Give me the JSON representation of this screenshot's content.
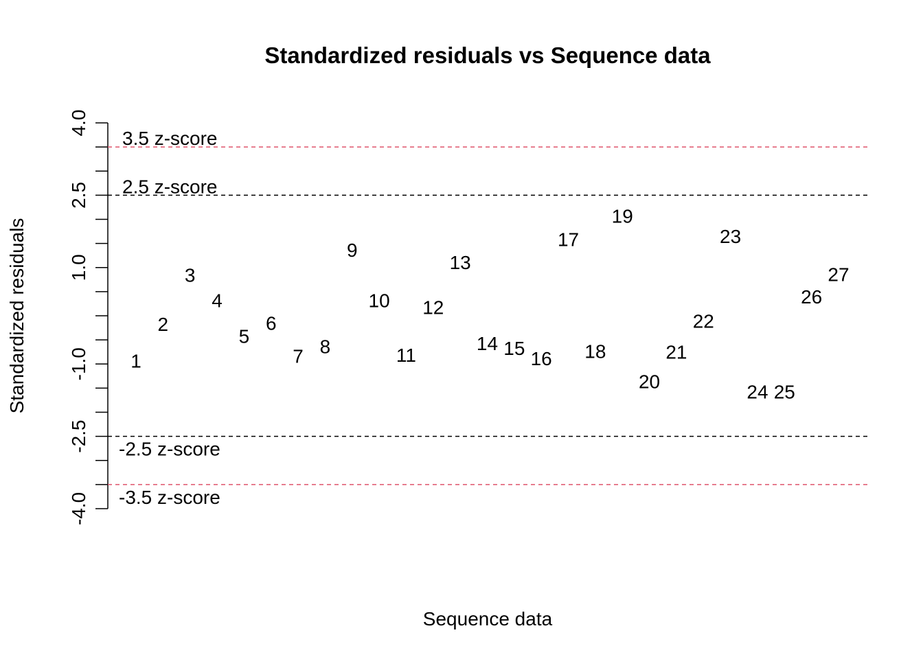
{
  "chart_data": {
    "type": "scatter",
    "title": "Standardized residuals vs Sequence data",
    "xlabel": "Sequence data",
    "ylabel": "Standardized residuals",
    "ylim": [
      -4.0,
      4.0
    ],
    "xlim": [
      1,
      27
    ],
    "y_tick_labels": [
      "-4.0",
      "-2.5",
      "-1.0",
      "1.0",
      "2.5",
      "4.0"
    ],
    "y_tick_values": [
      -4,
      -3.5,
      -3,
      -2.5,
      -2,
      -1.5,
      -1,
      -0.5,
      0,
      0.5,
      1,
      1.5,
      2,
      2.5,
      3,
      3.5,
      4
    ],
    "y_tick_label_values": [
      -4.0,
      -2.5,
      -1.0,
      1.0,
      2.5,
      4.0
    ],
    "grid": false,
    "points": {
      "x": [
        1,
        2,
        3,
        4,
        5,
        6,
        7,
        8,
        9,
        10,
        11,
        12,
        13,
        14,
        15,
        16,
        17,
        18,
        19,
        20,
        21,
        22,
        23,
        24,
        25,
        26,
        27
      ],
      "labels": [
        "1",
        "2",
        "3",
        "4",
        "5",
        "6",
        "7",
        "8",
        "9",
        "10",
        "11",
        "12",
        "13",
        "14",
        "15",
        "16",
        "17",
        "18",
        "19",
        "20",
        "21",
        "22",
        "23",
        "24",
        "25",
        "26",
        "27"
      ],
      "y": [
        -0.93,
        -0.17,
        0.85,
        0.32,
        -0.42,
        -0.15,
        -0.83,
        -0.63,
        1.37,
        0.32,
        -0.81,
        0.18,
        1.11,
        -0.57,
        -0.67,
        -0.88,
        1.59,
        -0.73,
        2.07,
        -1.36,
        -0.75,
        -0.11,
        1.65,
        -1.57,
        -1.57,
        0.4,
        0.86
      ]
    },
    "reference_lines": [
      {
        "y": 3.5,
        "label": "3.5 z-score",
        "color": "#DF536B"
      },
      {
        "y": 2.5,
        "label": "2.5 z-score",
        "color": "#000000"
      },
      {
        "y": -2.5,
        "label": "-2.5 z-score",
        "color": "#000000"
      },
      {
        "y": -3.5,
        "label": "-3.5 z-score",
        "color": "#DF536B"
      }
    ]
  }
}
